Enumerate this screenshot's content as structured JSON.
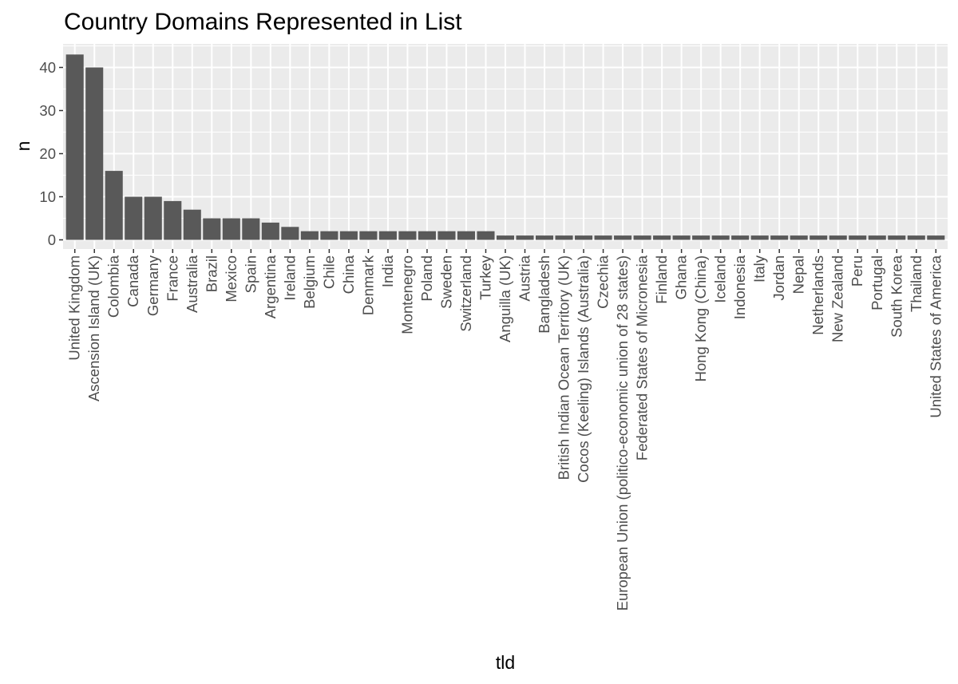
{
  "chart_data": {
    "type": "bar",
    "title": "Country Domains Represented in List",
    "xlabel": "tld",
    "ylabel": "n",
    "ylim": [
      0,
      45
    ],
    "yticks": [
      0,
      10,
      20,
      30,
      40
    ],
    "grid": true,
    "colors": {
      "panel": "#ebebeb",
      "grid": "#ffffff",
      "bar": "#595959",
      "tick_text": "#4d4d4d",
      "tick_mark": "#333333"
    },
    "categories": [
      "United Kingdom",
      "Ascension Island (UK)",
      "Colombia",
      "Canada",
      "Germany",
      "France",
      "Australia",
      "Brazil",
      "Mexico",
      "Spain",
      "Argentina",
      "Ireland",
      "Belgium",
      "Chile",
      "China",
      "Denmark",
      "India",
      "Montenegro",
      "Poland",
      "Sweden",
      "Switzerland",
      "Turkey",
      "Anguilla (UK)",
      "Austria",
      "Bangladesh",
      "British Indian Ocean Territory (UK)",
      "Cocos (Keeling) Islands (Australia)",
      "Czechia",
      "European Union (politico-economic union of 28 states)",
      "Federated States of Micronesia",
      "Finland",
      "Ghana",
      "Hong Kong (China)",
      "Iceland",
      "Indonesia",
      "Italy",
      "Jordan",
      "Nepal",
      "Netherlands",
      "New Zealand",
      "Peru",
      "Portugal",
      "South Korea",
      "Thailand",
      "United States of America"
    ],
    "values": [
      43,
      40,
      16,
      10,
      10,
      9,
      7,
      5,
      5,
      5,
      4,
      3,
      2,
      2,
      2,
      2,
      2,
      2,
      2,
      2,
      2,
      2,
      1,
      1,
      1,
      1,
      1,
      1,
      1,
      1,
      1,
      1,
      1,
      1,
      1,
      1,
      1,
      1,
      1,
      1,
      1,
      1,
      1,
      1,
      1
    ]
  }
}
